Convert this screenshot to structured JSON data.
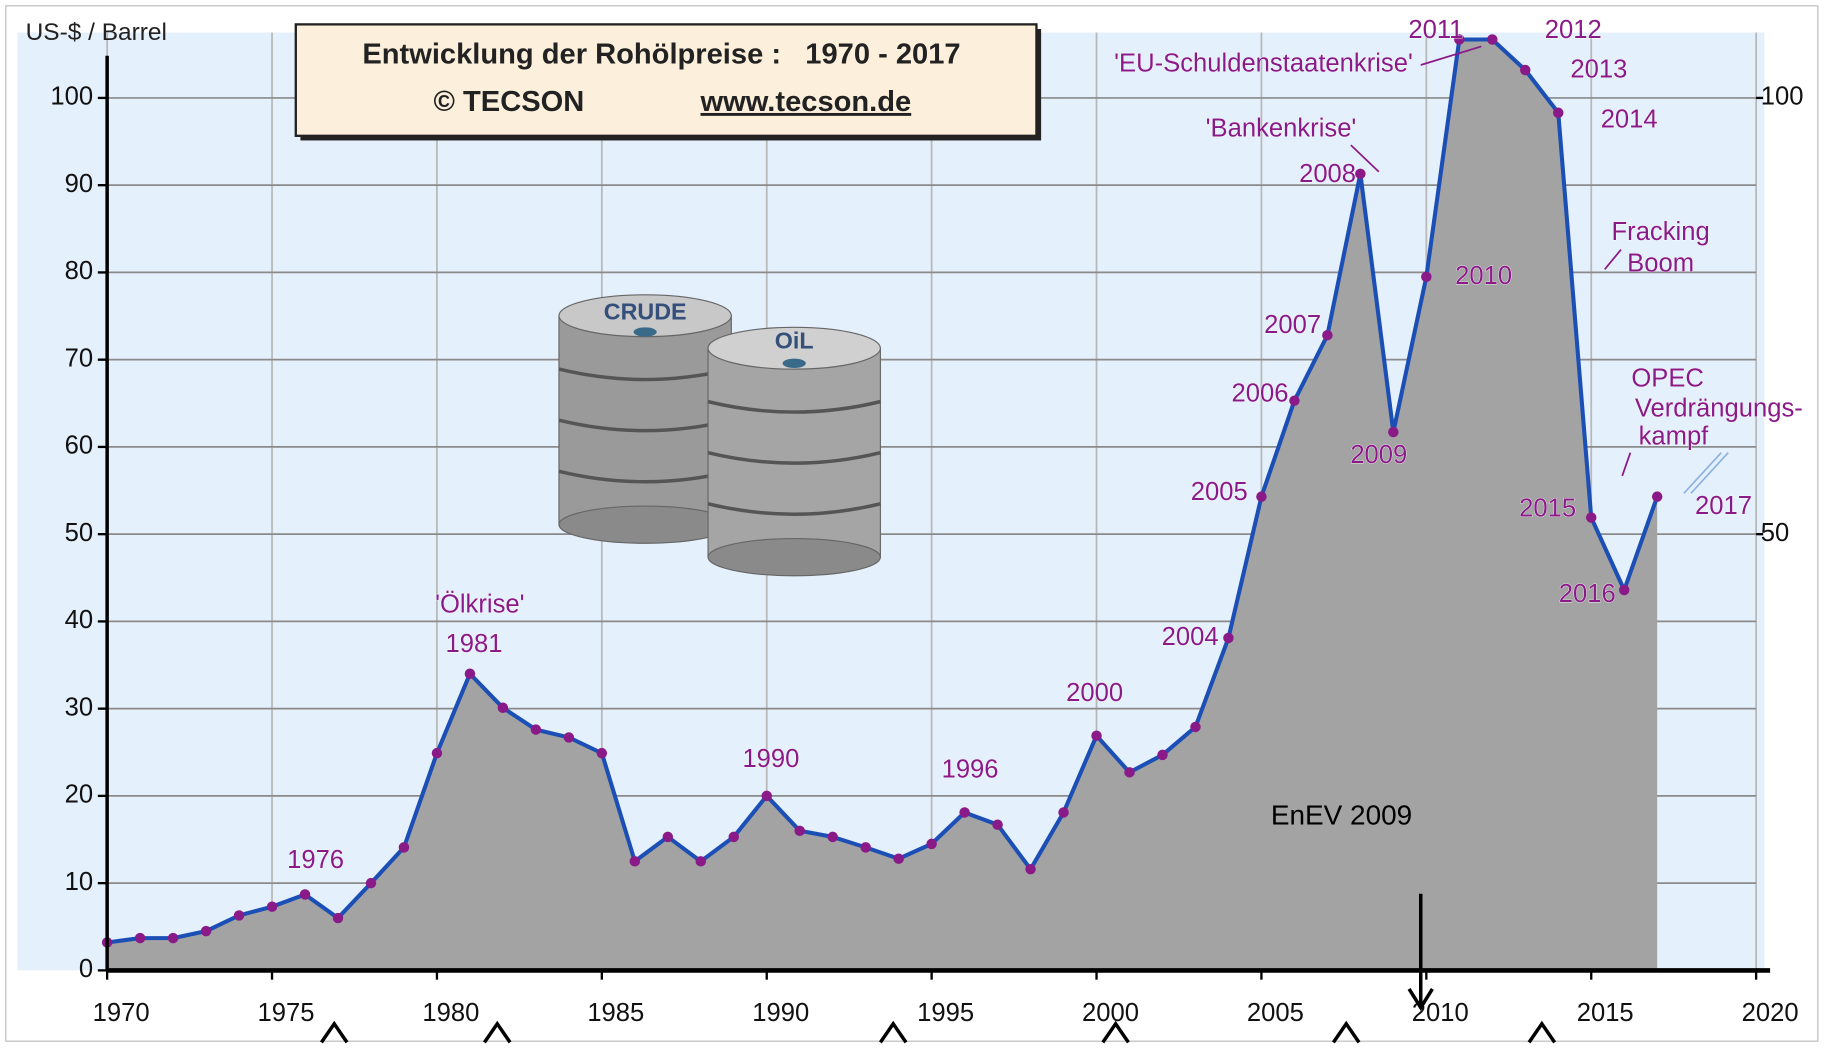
{
  "chart_data": {
    "type": "area",
    "title": "Entwicklung der Rohölpreise :   1970 - 2017",
    "subtitle": "© TECSON",
    "source": "www.tecson.de",
    "y_label": "US-$ / Barrel",
    "x": [
      1970,
      1971,
      1972,
      1973,
      1974,
      1975,
      1976,
      1977,
      1978,
      1979,
      1980,
      1981,
      1982,
      1983,
      1984,
      1985,
      1986,
      1987,
      1988,
      1989,
      1990,
      1991,
      1992,
      1993,
      1994,
      1995,
      1996,
      1997,
      1998,
      1999,
      2000,
      2001,
      2002,
      2003,
      2004,
      2005,
      2006,
      2007,
      2008,
      2009,
      2010,
      2011,
      2012,
      2013,
      2014,
      2015,
      2016,
      2017
    ],
    "values": [
      3.2,
      3.7,
      3.7,
      4.5,
      6.3,
      7.3,
      8.7,
      6.0,
      10.0,
      14.1,
      24.9,
      34.0,
      30.1,
      27.6,
      26.7,
      24.9,
      12.5,
      15.3,
      12.5,
      15.3,
      20.0,
      16.0,
      15.3,
      14.1,
      12.8,
      14.5,
      18.1,
      16.7,
      11.6,
      18.1,
      26.9,
      22.7,
      24.7,
      27.9,
      38.1,
      54.3,
      65.3,
      72.8,
      91.3,
      61.7,
      79.5,
      106.7,
      106.7,
      103.2,
      98.3,
      51.9,
      43.6,
      54.3
    ],
    "line_color": "#1c4fb5",
    "area_color": "#a3a3a3",
    "marker_color": "#8b1a89",
    "xlim": [
      1970,
      2020
    ],
    "xticks": [
      1970,
      1975,
      1980,
      1985,
      1990,
      1995,
      2000,
      2005,
      2010,
      2015,
      2020
    ],
    "ylim": [
      0,
      107.5
    ],
    "yticks": [
      0,
      10,
      20,
      30,
      40,
      50,
      60,
      70,
      80,
      90,
      100
    ],
    "y2lim": [
      0,
      107.5
    ],
    "y2ticks": [
      50,
      100
    ],
    "grid": true,
    "annotations": [
      "'Ölkrise'",
      "1981",
      "1976",
      "1990",
      "1996",
      "2000",
      "2004",
      "2005",
      "2006",
      "2007",
      "'Bankenkrise'",
      "2008",
      "2009",
      "2010",
      "'EU-Schuldenstaatenkrise'",
      "2011",
      "2012",
      "2013",
      "2014",
      "Fracking",
      "Boom",
      "OPEC",
      "Verdrängungs-",
      "kampf",
      "2015",
      "2016",
      "2017"
    ],
    "note": "EnEV 2009",
    "barrel_labels": [
      "CRUDE",
      "OiL"
    ]
  }
}
